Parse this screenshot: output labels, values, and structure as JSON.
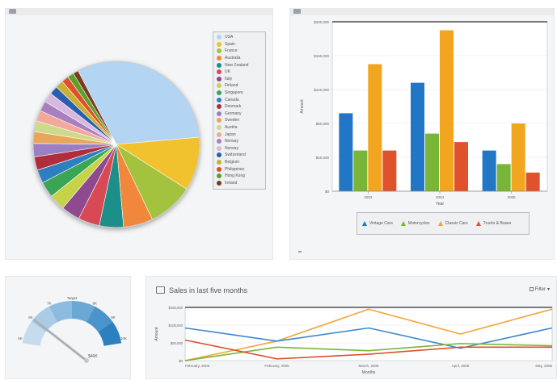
{
  "pie_panel": {
    "legend": [
      {
        "label": "USA",
        "color": "#b3d4f2"
      },
      {
        "label": "Spain",
        "color": "#f2c12e"
      },
      {
        "label": "France",
        "color": "#a3c23e"
      },
      {
        "label": "Australia",
        "color": "#f0873a"
      },
      {
        "label": "New Zealand",
        "color": "#1a8f8a"
      },
      {
        "label": "UK",
        "color": "#d64a55"
      },
      {
        "label": "Italy",
        "color": "#8f4a8f"
      },
      {
        "label": "Finland",
        "color": "#c6d34a"
      },
      {
        "label": "Singapore",
        "color": "#3aa556"
      },
      {
        "label": "Canada",
        "color": "#2f7fc1"
      },
      {
        "label": "Denmark",
        "color": "#b02f3a"
      },
      {
        "label": "Germany",
        "color": "#9a7fc2"
      },
      {
        "label": "Sweden",
        "color": "#e7a65c"
      },
      {
        "label": "Austria",
        "color": "#cfd98a"
      },
      {
        "label": "Japan",
        "color": "#f2a89a"
      },
      {
        "label": "Norway",
        "color": "#a97fbf"
      },
      {
        "label": "Norway",
        "color": "#d9b8e0"
      },
      {
        "label": "Switzerland",
        "color": "#2a5fb0"
      },
      {
        "label": "Belgium",
        "color": "#c9b032"
      },
      {
        "label": "Philippines",
        "color": "#e0502b"
      },
      {
        "label": "Hong Kong",
        "color": "#5aa02c"
      },
      {
        "label": "Ireland",
        "color": "#7a3a20"
      }
    ]
  },
  "chart_data": [
    {
      "type": "pie",
      "categories": [
        "USA",
        "Spain",
        "France",
        "Australia",
        "New Zealand",
        "UK",
        "Italy",
        "Finland",
        "Singapore",
        "Canada",
        "Denmark",
        "Germany",
        "Sweden",
        "Austria",
        "Japan",
        "Norway",
        "Norway",
        "Switzerland",
        "Belgium",
        "Philippines",
        "Hong Kong",
        "Ireland"
      ],
      "values": [
        30,
        10,
        8.5,
        5.5,
        4.5,
        4,
        3.5,
        3,
        3,
        2.5,
        2.5,
        2.5,
        2.2,
        2,
        2,
        1.9,
        1.8,
        1.6,
        1.5,
        1.3,
        1.2,
        1
      ]
    },
    {
      "type": "bar",
      "categories": [
        "2003",
        "2004",
        "2005"
      ],
      "ylabel": "Amount",
      "xlabel": "Year",
      "ylim": [
        0,
        200
      ],
      "yticks": [
        "$0",
        "$40,000",
        "$80,000",
        "$120,000",
        "$160,000",
        "$200,000"
      ],
      "series": [
        {
          "name": "Vintage Cars",
          "color": "#2176c5",
          "values": [
            92,
            128,
            48
          ]
        },
        {
          "name": "Motorcycles",
          "color": "#79b536",
          "values": [
            48,
            68,
            32
          ]
        },
        {
          "name": "Classic Cars",
          "color": "#f2a51f",
          "values": [
            150,
            190,
            80
          ]
        },
        {
          "name": "Trucks & Buses",
          "color": "#e0522b",
          "values": [
            48,
            58,
            22
          ]
        }
      ]
    },
    {
      "type": "line",
      "title": "Sales in last five months",
      "categories": [
        "February, 2005",
        "February, 2005",
        "March, 2005",
        "April, 2005",
        "May, 2005"
      ],
      "ylabel": "Amount",
      "xlabel": "Months",
      "ylim": [
        0,
        150
      ],
      "yticks": [
        "$0",
        "$50,000",
        "$100,000",
        "$150,000"
      ],
      "series": [
        {
          "color": "#f2a53a",
          "values": [
            0,
            55,
            145,
            75,
            145
          ]
        },
        {
          "color": "#3b87cc",
          "values": [
            92,
            55,
            92,
            35,
            92
          ]
        },
        {
          "color": "#79b536",
          "values": [
            0,
            38,
            28,
            48,
            42
          ]
        },
        {
          "color": "#d9532b",
          "values": [
            58,
            5,
            18,
            38,
            38
          ]
        }
      ]
    }
  ],
  "gauge": {
    "labels": [
      "5K",
      "6K",
      "7K",
      "Target",
      "8K",
      "9K",
      "10K"
    ],
    "value_label": "$46K"
  },
  "line_panel": {
    "title": "Sales in last five months",
    "filter_label": "Filter"
  }
}
